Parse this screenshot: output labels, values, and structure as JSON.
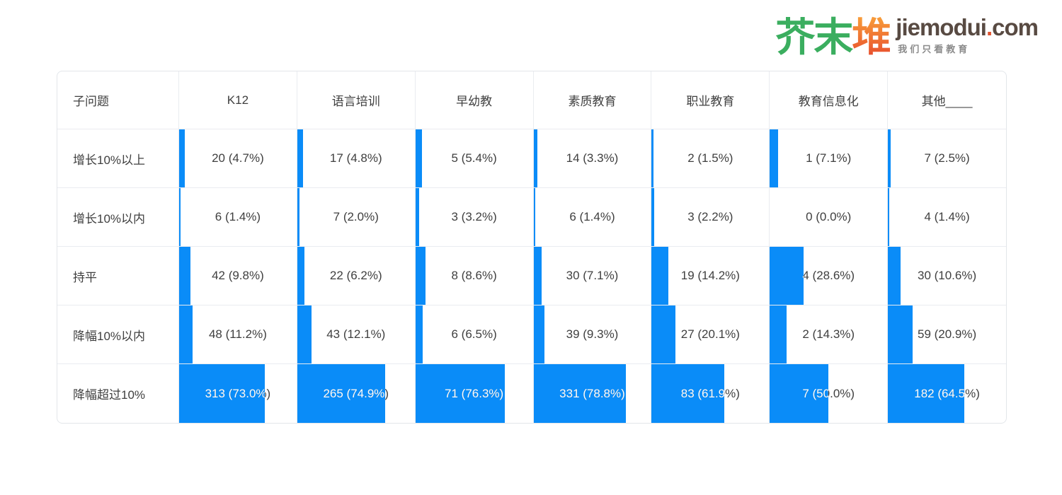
{
  "logo": {
    "cn_green": "芥末",
    "cn_orange": "堆",
    "domain_name": "jiemodui",
    "domain_dot": ".",
    "domain_tld": "com",
    "tagline": "我们只看教育",
    "colors": {
      "green": "#3BAE5F",
      "orange_top": "#F9A13A",
      "orange_bottom": "#E8512E",
      "domain_text": "#584A42",
      "dot": "#E0532F",
      "tagline": "#8B8B8B"
    }
  },
  "style": {
    "bar_color": "#0A8CF8",
    "border_color": "#EAECF0",
    "text_color": "#3F3F3F"
  },
  "chart_data": {
    "type": "table",
    "first_column_header": "子问题",
    "columns": [
      "K12",
      "语言培训",
      "早幼教",
      "素质教育",
      "职业教育",
      "教育信息化",
      "其他____"
    ],
    "rows": [
      "增长10%以上",
      "增长10%以内",
      "持平",
      "降幅10%以内",
      "降幅超过10%"
    ],
    "counts": [
      [
        20,
        17,
        5,
        14,
        2,
        1,
        7
      ],
      [
        6,
        7,
        3,
        6,
        3,
        0,
        4
      ],
      [
        42,
        22,
        8,
        30,
        19,
        4,
        30
      ],
      [
        48,
        43,
        6,
        39,
        27,
        2,
        59
      ],
      [
        313,
        265,
        71,
        331,
        83,
        7,
        182
      ]
    ],
    "percents": [
      [
        4.7,
        4.8,
        5.4,
        3.3,
        1.5,
        7.1,
        2.5
      ],
      [
        1.4,
        2.0,
        3.2,
        1.4,
        2.2,
        0.0,
        1.4
      ],
      [
        9.8,
        6.2,
        8.6,
        7.1,
        14.2,
        28.6,
        10.6
      ],
      [
        11.2,
        12.1,
        6.5,
        9.3,
        20.1,
        14.3,
        20.9
      ],
      [
        73.0,
        74.9,
        76.3,
        78.8,
        61.9,
        50.0,
        64.5
      ]
    ],
    "labels": [
      [
        "20 (4.7%)",
        "17 (4.8%)",
        "5 (5.4%)",
        "14 (3.3%)",
        "2 (1.5%)",
        "1 (7.1%)",
        "7 (2.5%)"
      ],
      [
        "6 (1.4%)",
        "7 (2.0%)",
        "3 (3.2%)",
        "6 (1.4%)",
        "3 (2.2%)",
        "0 (0.0%)",
        "4 (1.4%)"
      ],
      [
        "42 (9.8%)",
        "22 (6.2%)",
        "8 (8.6%)",
        "30 (7.1%)",
        "19 (14.2%)",
        "4 (28.6%)",
        "30 (10.6%)"
      ],
      [
        "48 (11.2%)",
        "43 (12.1%)",
        "6 (6.5%)",
        "39 (9.3%)",
        "27 (20.1%)",
        "2 (14.3%)",
        "59 (20.9%)"
      ],
      [
        "313 (73.0%)",
        "265 (74.9%)",
        "71 (76.3%)",
        "331 (78.8%)",
        "83 (61.9%)",
        "7 (50.0%)",
        "182 (64.5%)"
      ]
    ],
    "bar_represents": "percent of column width",
    "grid": true,
    "legend_position": "none"
  }
}
